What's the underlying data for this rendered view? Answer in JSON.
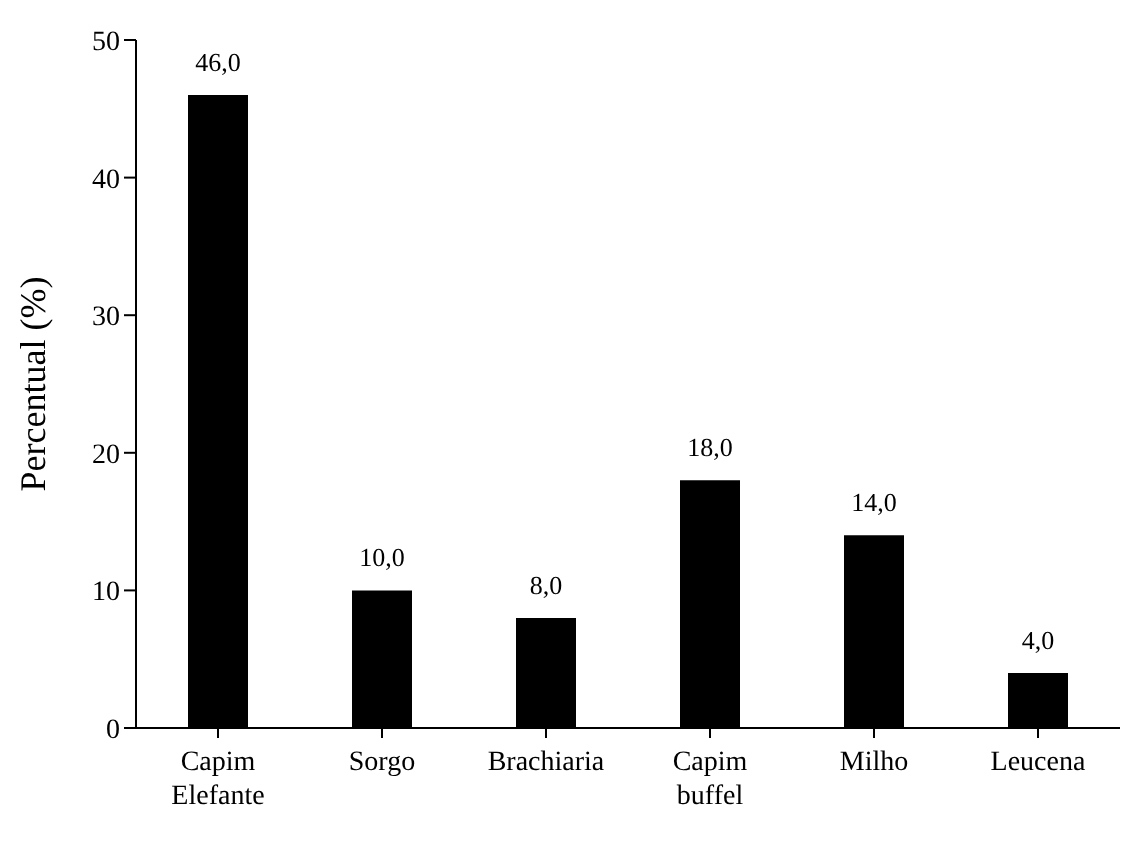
{
  "chart_data": {
    "type": "bar",
    "ylabel": "Percentual (%)",
    "categories": [
      "Capim Elefante",
      "Sorgo",
      "Brachiaria",
      "Capim buffel",
      "Milho",
      "Leucena"
    ],
    "values": [
      46,
      10,
      8,
      18,
      14,
      4
    ],
    "value_labels": [
      "46,0",
      "10,0",
      "8,0",
      "18,0",
      "14,0",
      "4,0"
    ],
    "color": "#000000",
    "ylim": [
      0,
      50
    ],
    "yticks": [
      0,
      10,
      20,
      30,
      40,
      50
    ],
    "grid": false,
    "legend": false
  }
}
